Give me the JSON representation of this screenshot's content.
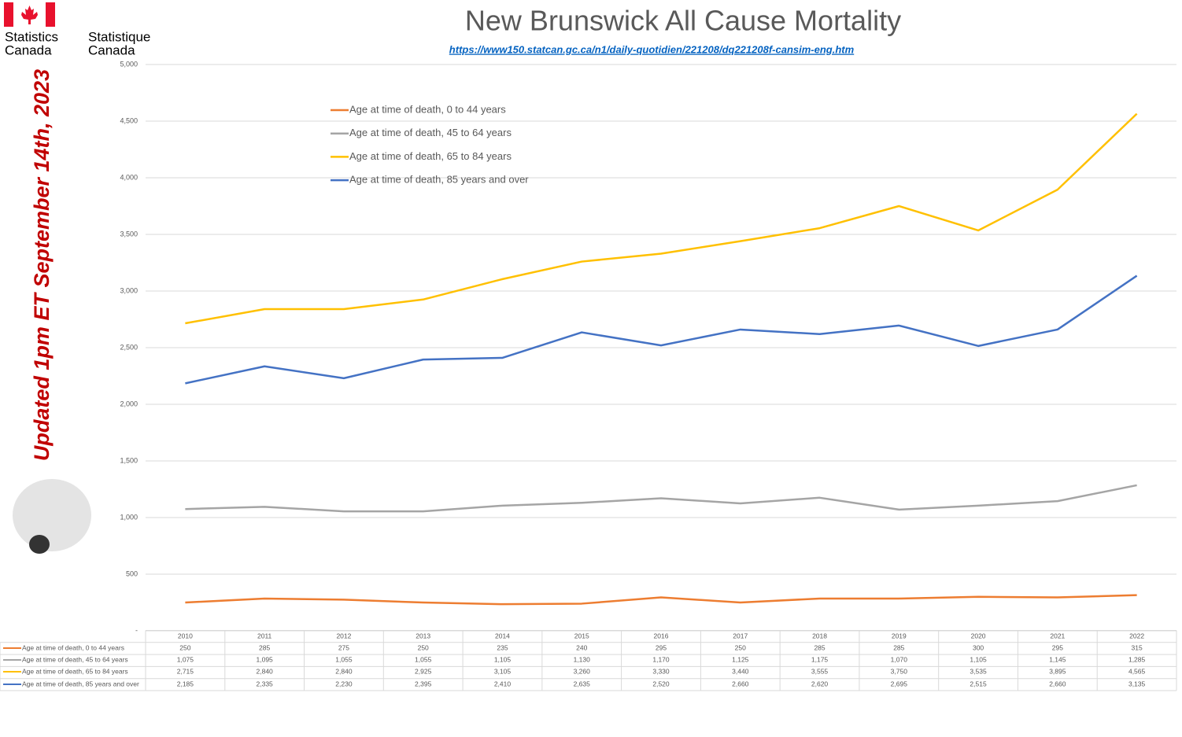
{
  "chart_data": {
    "type": "line",
    "title": "New Brunswick All Cause Mortality",
    "link": "https://www150.statcan.gc.ca/n1/daily-quotidien/221208/dq221208f-cansim-eng.htm",
    "annotation": "Updated 1pm ET September 14th, 2023",
    "logo_text": [
      "Statistics",
      "Canada",
      "Statistique",
      "Canada"
    ],
    "categories": [
      "2010",
      "2011",
      "2012",
      "2013",
      "2014",
      "2015",
      "2016",
      "2017",
      "2018",
      "2019",
      "2020",
      "2021",
      "2022"
    ],
    "ylim": [
      0,
      5000
    ],
    "yticks": [
      {
        "value": 0,
        "label": "-"
      },
      500,
      {
        "value": 1000,
        "label": "1,000"
      },
      {
        "value": 1500,
        "label": "1,500"
      },
      {
        "value": 2000,
        "label": "2,000"
      },
      {
        "value": 2500,
        "label": "2,500"
      },
      {
        "value": 3000,
        "label": "3,000"
      },
      {
        "value": 3500,
        "label": "3,500"
      },
      {
        "value": 4000,
        "label": "4,000"
      },
      {
        "value": 4500,
        "label": "4,500"
      },
      {
        "value": 5000,
        "label": "5,000"
      }
    ],
    "grid": true,
    "series": [
      {
        "name": "Age at time of death, 0 to 44 years",
        "color": "#ed7d31",
        "values": [
          250,
          285,
          275,
          250,
          235,
          240,
          295,
          250,
          285,
          285,
          300,
          295,
          315
        ],
        "value_labels": [
          "250",
          "285",
          "275",
          "250",
          "235",
          "240",
          "295",
          "250",
          "285",
          "285",
          "300",
          "295",
          "315"
        ]
      },
      {
        "name": "Age at time of death, 45 to 64 years",
        "color": "#a5a5a5",
        "values": [
          1075,
          1095,
          1055,
          1055,
          1105,
          1130,
          1170,
          1125,
          1175,
          1070,
          1105,
          1145,
          1285
        ],
        "value_labels": [
          "1,075",
          "1,095",
          "1,055",
          "1,055",
          "1,105",
          "1,130",
          "1,170",
          "1,125",
          "1,175",
          "1,070",
          "1,105",
          "1,145",
          "1,285"
        ]
      },
      {
        "name": "Age at time of death, 65 to 84 years",
        "color": "#ffc000",
        "values": [
          2715,
          2840,
          2840,
          2925,
          3105,
          3260,
          3330,
          3440,
          3555,
          3750,
          3535,
          3895,
          4565
        ],
        "value_labels": [
          "2,715",
          "2,840",
          "2,840",
          "2,925",
          "3,105",
          "3,260",
          "3,330",
          "3,440",
          "3,555",
          "3,750",
          "3,535",
          "3,895",
          "4,565"
        ]
      },
      {
        "name": "Age at time of death, 85 years and over",
        "color": "#4472c4",
        "values": [
          2185,
          2335,
          2230,
          2395,
          2410,
          2635,
          2520,
          2660,
          2620,
          2695,
          2515,
          2660,
          3135
        ],
        "value_labels": [
          "2,185",
          "2,335",
          "2,230",
          "2,395",
          "2,410",
          "2,635",
          "2,520",
          "2,660",
          "2,620",
          "2,695",
          "2,515",
          "2,660",
          "3,135"
        ]
      }
    ]
  }
}
